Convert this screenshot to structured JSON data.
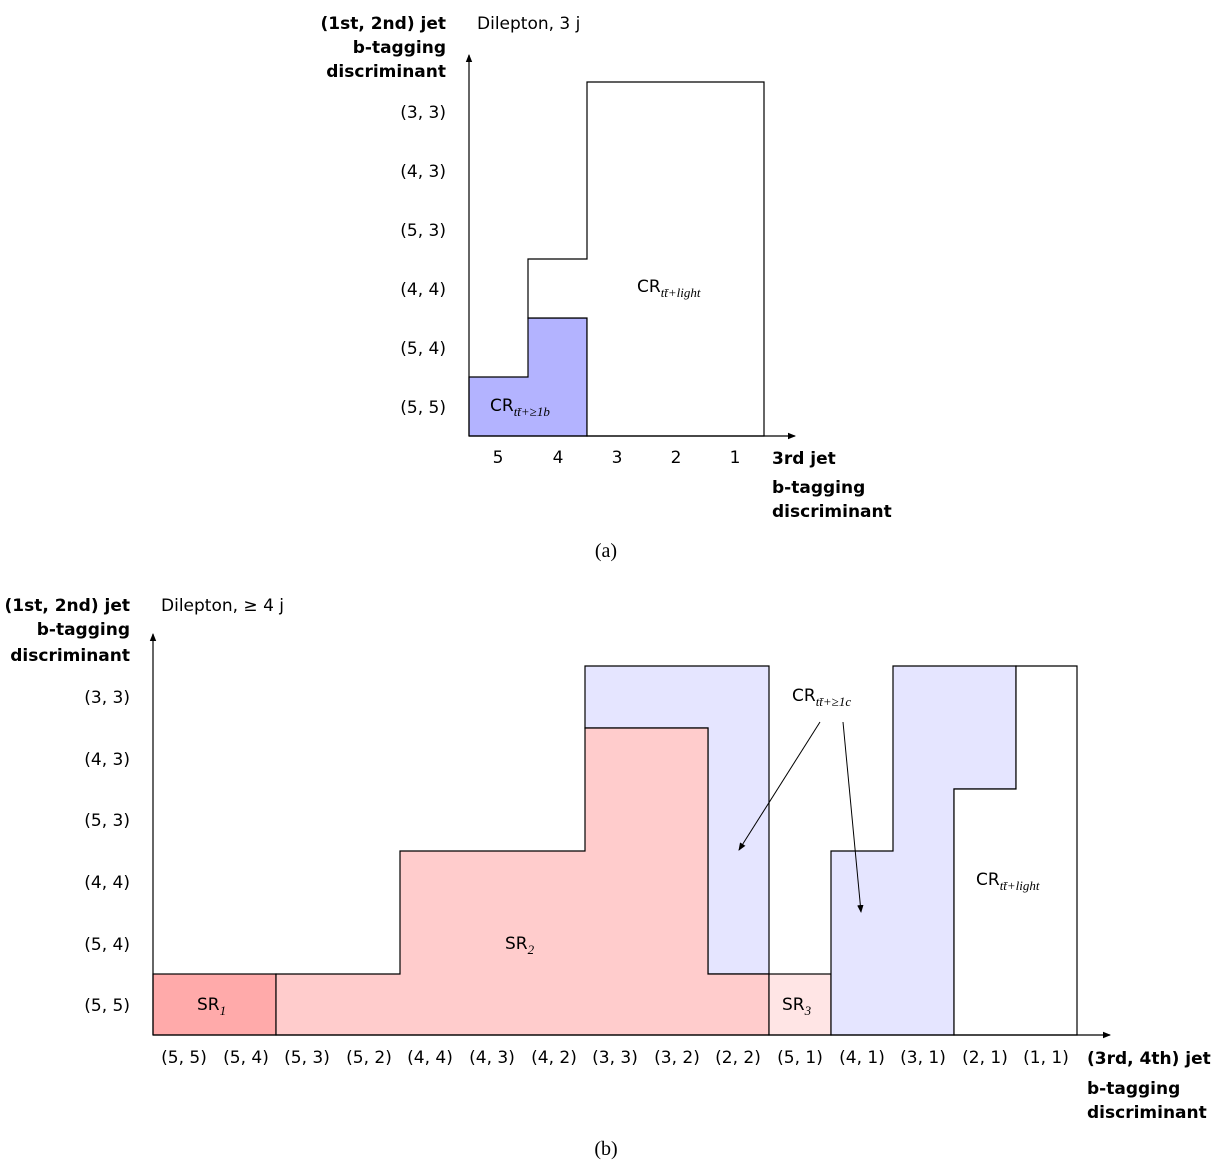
{
  "panel_a": {
    "channel_label": "Dilepton, 3 j",
    "y_title": [
      "(1st, 2nd) jet",
      "b-tagging",
      "discriminant"
    ],
    "x_title": [
      "3rd jet",
      "b-tagging",
      "discriminant"
    ],
    "y_ticks": [
      "(3, 3)",
      "(4, 3)",
      "(5, 3)",
      "(4, 4)",
      "(5, 4)",
      "(5, 5)"
    ],
    "x_ticks": [
      "5",
      "4",
      "3",
      "2",
      "1"
    ],
    "regions": [
      {
        "name": "CR",
        "sub": "tt̄+≥1b",
        "color": "#b3b3ff"
      },
      {
        "name": "CR",
        "sub": "tt̄+light",
        "color": "#ffffff"
      }
    ],
    "caption": "(a)"
  },
  "panel_b": {
    "channel_label": "Dilepton, ≥ 4 j",
    "y_title": [
      "(1st, 2nd) jet",
      "b-tagging",
      "discriminant"
    ],
    "x_title": [
      "(3rd, 4th) jet",
      "b-tagging",
      "discriminant"
    ],
    "y_ticks": [
      "(3, 3)",
      "(4, 3)",
      "(5, 3)",
      "(4, 4)",
      "(5, 4)",
      "(5, 5)"
    ],
    "x_ticks": [
      "(5, 5)",
      "(5, 4)",
      "(5, 3)",
      "(5, 2)",
      "(4, 4)",
      "(4, 3)",
      "(4, 2)",
      "(3, 3)",
      "(3, 2)",
      "(2, 2)",
      "(5, 1)",
      "(4, 1)",
      "(3, 1)",
      "(2, 1)",
      "(1, 1)"
    ],
    "regions": [
      {
        "name": "SR",
        "sub": "1",
        "color": "#ffaaaa"
      },
      {
        "name": "SR",
        "sub": "2",
        "color": "#ffcccc"
      },
      {
        "name": "SR",
        "sub": "3",
        "color": "#ffe5e5"
      },
      {
        "name": "CR",
        "sub": "tt̄+≥1c",
        "color": "#e5e5ff"
      },
      {
        "name": "CR",
        "sub": "tt̄+light",
        "color": "#ffffff"
      }
    ],
    "caption": "(b)"
  }
}
